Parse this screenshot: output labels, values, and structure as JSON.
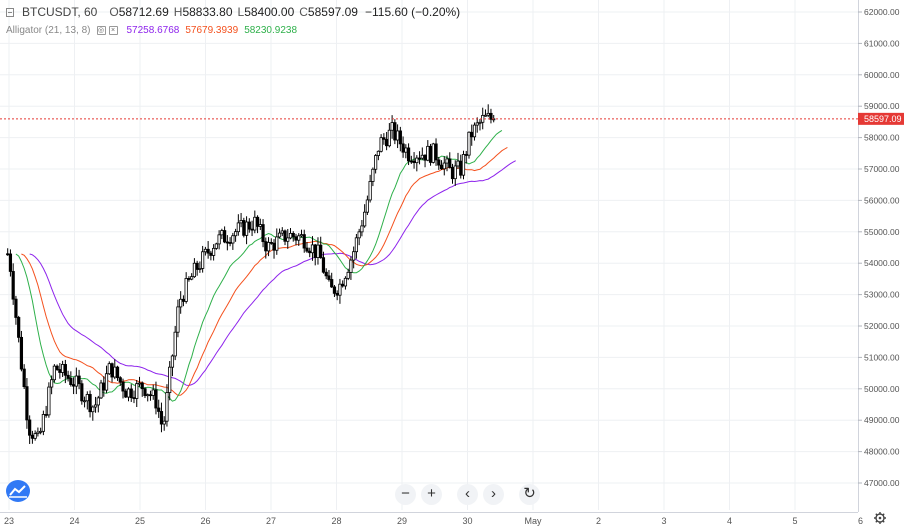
{
  "symbol": "BTCUSDT, 60",
  "ohlc": {
    "o_label": "O",
    "o_value": "58712.69",
    "h_label": "H",
    "h_value": "58833.80",
    "l_label": "L",
    "l_value": "58400.00",
    "c_label": "C",
    "c_value": "58597.09",
    "change": "−115.60 (−0.20%)"
  },
  "indicator": {
    "name": "Alligator (21, 13, 8)",
    "jaw": "57258.6768",
    "teeth": "57679.3939",
    "lips": "58230.9238",
    "eye_btn": "◎",
    "close_btn": "×"
  },
  "price_axis": {
    "labels": [
      "62000.00",
      "61000.00",
      "60000.00",
      "59000.00",
      "58000.00",
      "57000.00",
      "56000.00",
      "55000.00",
      "54000.00",
      "53000.00",
      "52000.00",
      "51000.00",
      "50000.00",
      "49000.00",
      "48000.00",
      "47000.00"
    ],
    "last_price_label": "58597.09"
  },
  "time_axis": {
    "labels": [
      "23",
      "24",
      "25",
      "26",
      "27",
      "28",
      "29",
      "30",
      "May",
      "2",
      "3",
      "4",
      "5",
      "6"
    ]
  },
  "nav": {
    "zoom_out": "−",
    "zoom_in": "+",
    "scroll_left": "‹",
    "scroll_right": "›",
    "reset": "↻"
  },
  "colors": {
    "up_candle": "#ffffff",
    "down_candle": "#000000",
    "jaw": "#8e24ec",
    "teeth": "#f4511e",
    "lips": "#2eb04a",
    "last_price_line": "#e53935",
    "logo": "#3179f5"
  },
  "chart_data": {
    "type": "candlestick",
    "interval": "60",
    "y_range": [
      46600,
      62400
    ],
    "x_range": [
      "23",
      "6"
    ],
    "anchors": [
      {
        "day": 0.0,
        "price": 54300
      },
      {
        "day": 0.15,
        "price": 51500
      },
      {
        "day": 0.3,
        "price": 48800
      },
      {
        "day": 0.45,
        "price": 48300
      },
      {
        "day": 0.7,
        "price": 50700
      },
      {
        "day": 1.0,
        "price": 50200
      },
      {
        "day": 1.3,
        "price": 49400
      },
      {
        "day": 1.55,
        "price": 50700
      },
      {
        "day": 1.8,
        "price": 49900
      },
      {
        "day": 2.05,
        "price": 50100
      },
      {
        "day": 2.25,
        "price": 49600
      },
      {
        "day": 2.35,
        "price": 48700
      },
      {
        "day": 2.6,
        "price": 52800
      },
      {
        "day": 2.85,
        "price": 53800
      },
      {
        "day": 3.15,
        "price": 54700
      },
      {
        "day": 3.45,
        "price": 55000
      },
      {
        "day": 3.75,
        "price": 55300
      },
      {
        "day": 3.95,
        "price": 54500
      },
      {
        "day": 4.25,
        "price": 54900
      },
      {
        "day": 4.5,
        "price": 54800
      },
      {
        "day": 4.75,
        "price": 54200
      },
      {
        "day": 4.9,
        "price": 53100
      },
      {
        "day": 5.05,
        "price": 53300
      },
      {
        "day": 5.25,
        "price": 54300
      },
      {
        "day": 5.45,
        "price": 55800
      },
      {
        "day": 5.65,
        "price": 57800
      },
      {
        "day": 5.85,
        "price": 58200
      },
      {
        "day": 6.1,
        "price": 57500
      },
      {
        "day": 6.5,
        "price": 57500
      },
      {
        "day": 6.75,
        "price": 56900
      },
      {
        "day": 6.9,
        "price": 57000
      },
      {
        "day": 7.05,
        "price": 58100
      },
      {
        "day": 7.25,
        "price": 58600
      },
      {
        "day": 7.4,
        "price": 58600
      }
    ],
    "alligator_last": {
      "jaw": 57258.6768,
      "teeth": 57679.3939,
      "lips": 58230.9238
    },
    "last_price": 58597.09
  }
}
